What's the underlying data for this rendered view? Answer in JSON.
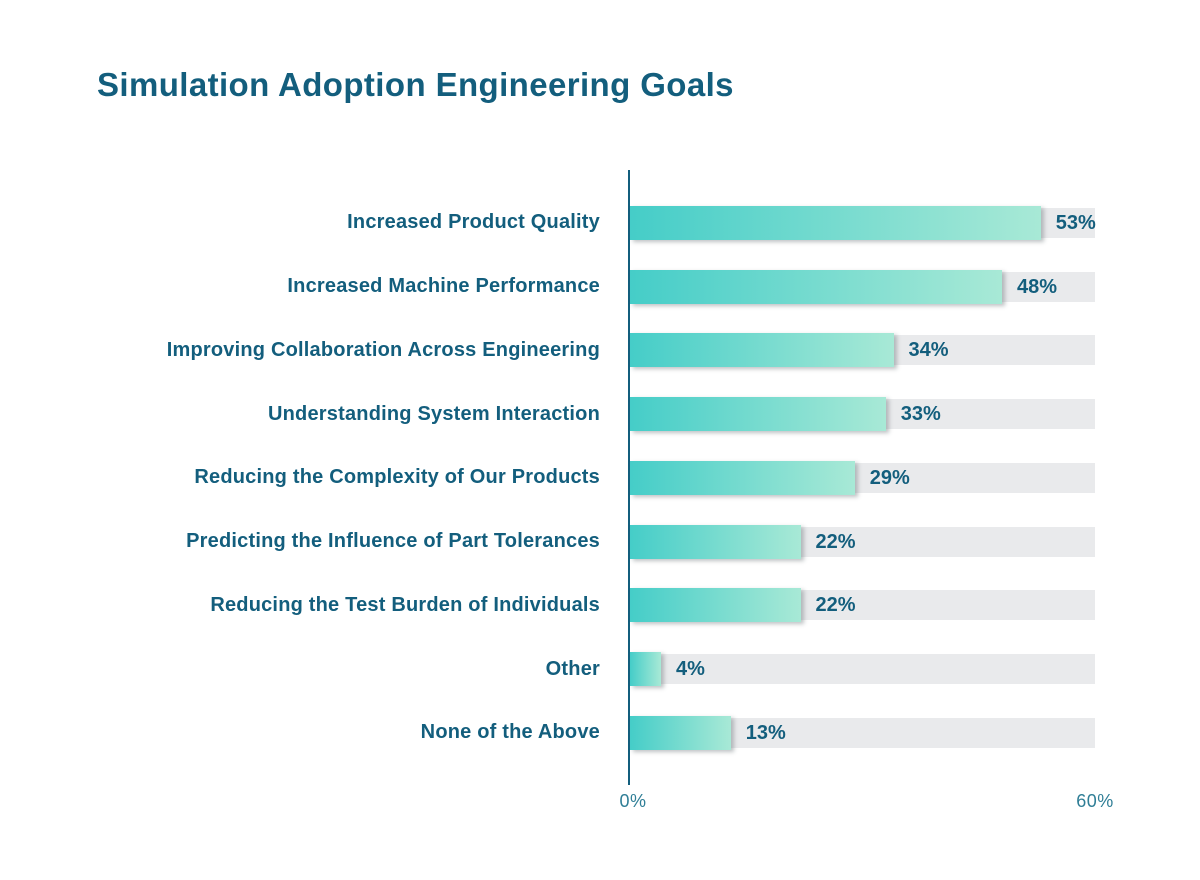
{
  "title": "Simulation Adoption Engineering Goals",
  "colors": {
    "background": "#ffffff",
    "title_text": "#135e7d",
    "label_text": "#135e7d",
    "value_text": "#135e7d",
    "axis_line": "#135e7d",
    "axis_tick_text": "#2f7e96",
    "bar_gradient_start": "#45cdc8",
    "bar_gradient_end": "#a8e9d6",
    "track": "#e9eaec"
  },
  "chart_data": {
    "type": "bar",
    "orientation": "horizontal",
    "title": "Simulation Adoption Engineering Goals",
    "categories": [
      "Increased Product Quality",
      "Increased Machine Performance",
      "Improving Collaboration Across Engineering",
      "Understanding System Interaction",
      "Reducing the Complexity of Our Products",
      "Predicting the Influence of Part Tolerances",
      "Reducing the Test Burden of Individuals",
      "Other",
      "None of the Above"
    ],
    "values": [
      53,
      48,
      34,
      33,
      29,
      22,
      22,
      4,
      13
    ],
    "value_labels": [
      "53%",
      "48%",
      "34%",
      "33%",
      "29%",
      "22%",
      "22%",
      "4%",
      "13%"
    ],
    "value_suffix": "%",
    "xlabel": "",
    "ylabel": "",
    "xlim": [
      0,
      60
    ],
    "x_tick_labels": [
      "0%",
      "60%"
    ],
    "grid": false,
    "legend": false,
    "track_background": true
  }
}
